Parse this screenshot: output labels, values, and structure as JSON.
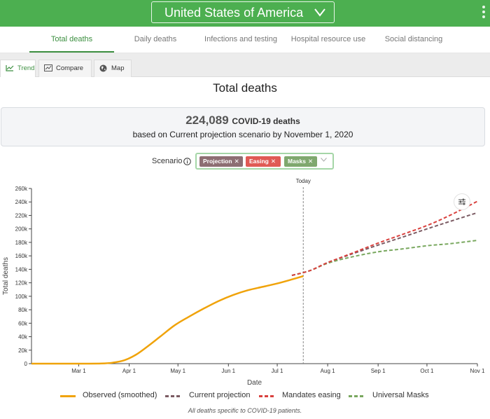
{
  "header": {
    "country": "United States of America"
  },
  "tabs": [
    {
      "label": "Total deaths",
      "active": true
    },
    {
      "label": "Daily deaths",
      "active": false
    },
    {
      "label": "Infections and testing",
      "active": false
    },
    {
      "label": "Hospital resource use",
      "active": false
    },
    {
      "label": "Social distancing",
      "active": false
    }
  ],
  "subtabs": [
    {
      "label": "Trend",
      "icon": "trend-icon",
      "active": true
    },
    {
      "label": "Compare",
      "icon": "compare-icon",
      "active": false
    },
    {
      "label": "Map",
      "icon": "globe-icon",
      "active": false
    }
  ],
  "page_title": "Total deaths",
  "summary": {
    "value": "224,089",
    "unit": "COVID-19 deaths",
    "subtitle": "based on Current projection scenario by November 1, 2020"
  },
  "scenario": {
    "label": "Scenario",
    "chips": [
      {
        "label": "Projection",
        "color": "#8d6e73"
      },
      {
        "label": "Easing",
        "color": "#e05a55"
      },
      {
        "label": "Masks",
        "color": "#7fa86e"
      }
    ]
  },
  "colors": {
    "accent": "#4caf50",
    "observed": "#f0a30a",
    "projection": "#7b5b63",
    "easing": "#d9413e",
    "masks": "#79a85f"
  },
  "chart_data": {
    "type": "line",
    "xlabel": "Date",
    "ylabel": "Total deaths",
    "x_ticks": [
      "Mar 1",
      "Apr 1",
      "May 1",
      "Jun 1",
      "Jul 1",
      "Aug 1",
      "Sep 1",
      "Oct 1",
      "Nov 1"
    ],
    "y_ticks": [
      "0",
      "20k",
      "40k",
      "60k",
      "80k",
      "100k",
      "120k",
      "140k",
      "160k",
      "180k",
      "200k",
      "220k",
      "240k",
      "260k"
    ],
    "ylim": [
      0,
      260000
    ],
    "xlim": [
      "2020-02-01",
      "2020-11-01"
    ],
    "today_label": "Today",
    "today_date": "2020-07-17",
    "grid": false,
    "legend": "bottom",
    "series": [
      {
        "name": "Observed (smoothed)",
        "style": "solid",
        "points": [
          [
            "2020-02-01",
            0
          ],
          [
            "2020-03-01",
            0
          ],
          [
            "2020-03-15",
            200
          ],
          [
            "2020-03-22",
            1500
          ],
          [
            "2020-03-29",
            5000
          ],
          [
            "2020-04-05",
            13000
          ],
          [
            "2020-04-12",
            25000
          ],
          [
            "2020-04-20",
            40000
          ],
          [
            "2020-04-29",
            57000
          ],
          [
            "2020-05-08",
            70000
          ],
          [
            "2020-05-17",
            82000
          ],
          [
            "2020-05-26",
            93000
          ],
          [
            "2020-06-04",
            102000
          ],
          [
            "2020-06-13",
            109000
          ],
          [
            "2020-06-22",
            114000
          ],
          [
            "2020-07-01",
            119000
          ],
          [
            "2020-07-10",
            125000
          ],
          [
            "2020-07-17",
            130000
          ]
        ]
      },
      {
        "name": "Current projection",
        "style": "dashed",
        "points": [
          [
            "2020-07-10",
            131000
          ],
          [
            "2020-07-21",
            138000
          ],
          [
            "2020-08-01",
            150000
          ],
          [
            "2020-08-15",
            162000
          ],
          [
            "2020-09-01",
            176000
          ],
          [
            "2020-09-15",
            187000
          ],
          [
            "2020-10-01",
            200000
          ],
          [
            "2020-10-15",
            211000
          ],
          [
            "2020-11-01",
            224089
          ]
        ]
      },
      {
        "name": "Mandates easing",
        "style": "dashed",
        "points": [
          [
            "2020-07-10",
            131000
          ],
          [
            "2020-07-21",
            138000
          ],
          [
            "2020-08-01",
            150000
          ],
          [
            "2020-08-15",
            163000
          ],
          [
            "2020-09-01",
            179000
          ],
          [
            "2020-09-15",
            191000
          ],
          [
            "2020-10-01",
            205000
          ],
          [
            "2020-10-15",
            220000
          ],
          [
            "2020-11-01",
            241000
          ]
        ]
      },
      {
        "name": "Universal Masks",
        "style": "dashed",
        "points": [
          [
            "2020-07-10",
            131000
          ],
          [
            "2020-07-21",
            138000
          ],
          [
            "2020-08-01",
            149000
          ],
          [
            "2020-08-15",
            158000
          ],
          [
            "2020-09-01",
            166000
          ],
          [
            "2020-09-15",
            170000
          ],
          [
            "2020-10-01",
            175000
          ],
          [
            "2020-10-15",
            178000
          ],
          [
            "2020-11-01",
            183000
          ]
        ]
      }
    ]
  },
  "legend": {
    "items": [
      {
        "label": "Observed (smoothed)"
      },
      {
        "label": "Current projection"
      },
      {
        "label": "Mandates easing"
      },
      {
        "label": "Universal Masks"
      }
    ]
  },
  "footnote": "All deaths specific to COVID-19 patients."
}
